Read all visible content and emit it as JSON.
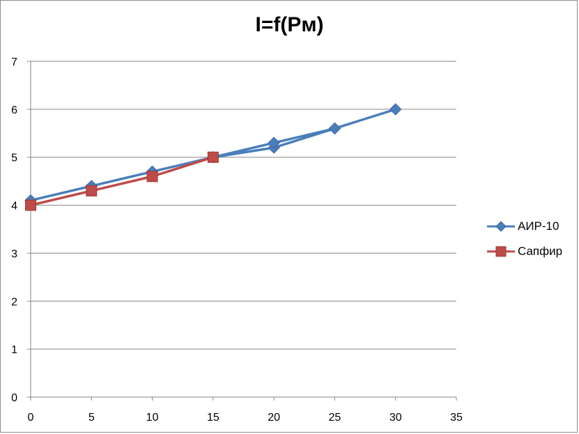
{
  "chart_data": {
    "type": "line",
    "title": "I=f(Pм)",
    "xlim": [
      0,
      35
    ],
    "ylim": [
      0,
      7
    ],
    "x_ticks": [
      0,
      5,
      10,
      15,
      20,
      25,
      30,
      35
    ],
    "y_ticks": [
      0,
      1,
      2,
      3,
      4,
      5,
      6,
      7
    ],
    "x_tick_labels": [
      "0",
      "5",
      "10",
      "15",
      "20",
      "25",
      "30",
      "35"
    ],
    "y_tick_labels": [
      "0",
      "1",
      "2",
      "3",
      "4",
      "5",
      "6",
      "7"
    ],
    "grid": "horizontal",
    "legend_position": "right",
    "series": [
      {
        "name": "АИР-10",
        "color": "#4a7ebb",
        "marker": "diamond",
        "x": [
          0,
          5,
          10,
          15,
          20,
          25,
          30,
          25,
          20,
          15,
          10,
          5,
          0
        ],
        "y": [
          4.1,
          4.4,
          4.7,
          5.0,
          5.2,
          5.6,
          6.0,
          5.6,
          5.3,
          5.0,
          4.7,
          4.4,
          4.1
        ]
      },
      {
        "name": "Сапфир",
        "color": "#be4b48",
        "marker": "square",
        "x": [
          0,
          5,
          10,
          15
        ],
        "y": [
          4.0,
          4.3,
          4.6,
          5.0
        ]
      }
    ]
  }
}
